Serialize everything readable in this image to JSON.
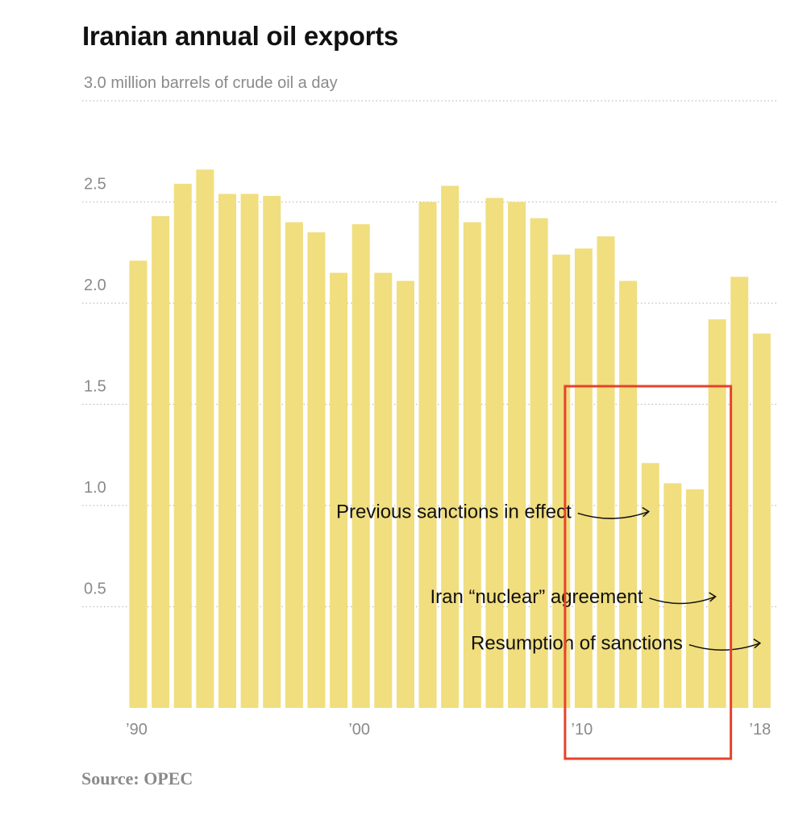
{
  "chart_data": {
    "type": "bar",
    "title": "Iranian annual oil exports",
    "unit_label": "million barrels of crude oil a day",
    "top_tick_label": "3.0 million barrels of crude oil a day",
    "ylim": [
      0,
      3.0
    ],
    "y_ticks": [
      {
        "value": 3.0,
        "label": "3.0 million barrels of crude oil a day"
      },
      {
        "value": 2.5,
        "label": "2.5"
      },
      {
        "value": 2.0,
        "label": "2.0"
      },
      {
        "value": 1.5,
        "label": "1.5"
      },
      {
        "value": 1.0,
        "label": "1.0"
      },
      {
        "value": 0.5,
        "label": "0.5"
      }
    ],
    "x_tick_labels": [
      {
        "year": 1990,
        "label": "’90"
      },
      {
        "year": 2000,
        "label": "’00"
      },
      {
        "year": 2010,
        "label": "’10"
      },
      {
        "year": 2018,
        "label": "’18"
      }
    ],
    "years": [
      1990,
      1991,
      1992,
      1993,
      1994,
      1995,
      1996,
      1997,
      1998,
      1999,
      2000,
      2001,
      2002,
      2003,
      2004,
      2005,
      2006,
      2007,
      2008,
      2009,
      2010,
      2011,
      2012,
      2013,
      2014,
      2015,
      2016,
      2017,
      2018
    ],
    "values": [
      2.21,
      2.43,
      2.59,
      2.66,
      2.54,
      2.54,
      2.53,
      2.4,
      2.35,
      2.15,
      2.39,
      2.15,
      2.11,
      2.5,
      2.58,
      2.4,
      2.52,
      2.5,
      2.42,
      2.24,
      2.27,
      2.33,
      2.11,
      1.21,
      1.11,
      1.08,
      1.92,
      2.13,
      1.85
    ],
    "bar_color": "#f0de7f",
    "annotations": [
      {
        "text": "Previous sanctions in effect",
        "year": 2013,
        "value": 0.97
      },
      {
        "text": "Iran “nuclear” agreement",
        "year": 2016,
        "value": 0.55
      },
      {
        "text": "Resumption of sanctions",
        "year": 2018,
        "value": 0.32
      }
    ],
    "highlight_box": {
      "from_year": 2010,
      "to_year": 2016,
      "color": "#e8422b"
    }
  },
  "source": "Source: OPEC"
}
